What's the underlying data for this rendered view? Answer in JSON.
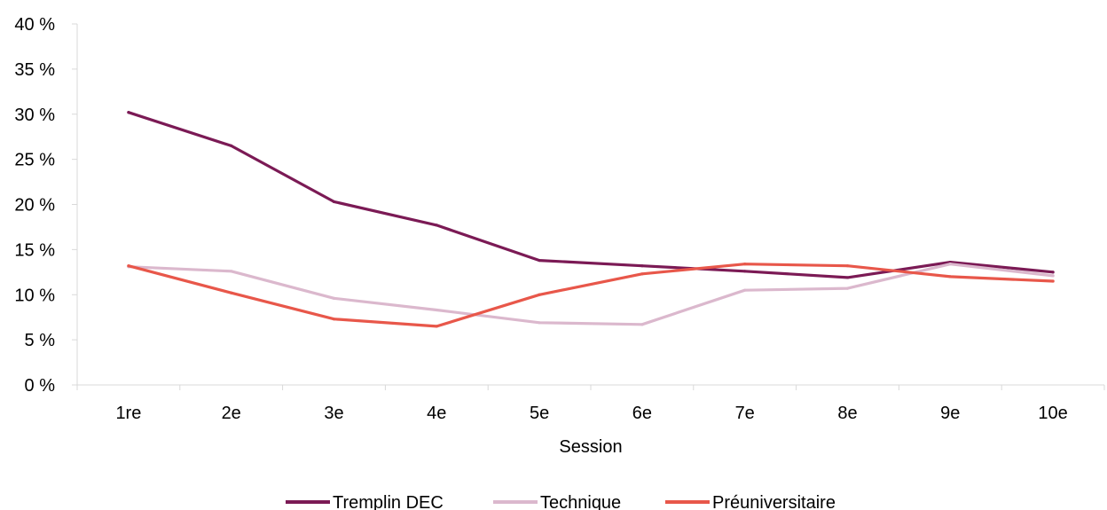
{
  "chart_data": {
    "type": "line",
    "title": "",
    "xlabel": "Session",
    "ylabel": "",
    "categories": [
      "1re",
      "2e",
      "3e",
      "4e",
      "5e",
      "6e",
      "7e",
      "8e",
      "9e",
      "10e"
    ],
    "y_ticks": [
      "0 %",
      "5 %",
      "10 %",
      "15 %",
      "20 %",
      "25 %",
      "30 %",
      "35 %",
      "40 %"
    ],
    "ylim": [
      0,
      40
    ],
    "grid": false,
    "legend_position": "bottom",
    "series": [
      {
        "name": "Tremplin DEC",
        "color": "#7b1a55",
        "values": [
          30.2,
          26.5,
          20.3,
          17.7,
          13.8,
          13.2,
          12.6,
          11.9,
          13.6,
          12.5
        ]
      },
      {
        "name": "Technique",
        "color": "#dbb8cd",
        "values": [
          13.1,
          12.6,
          9.6,
          8.3,
          6.9,
          6.7,
          10.5,
          10.7,
          13.4,
          12.1
        ]
      },
      {
        "name": "Préuniversitaire",
        "color": "#e8574a",
        "values": [
          13.2,
          10.2,
          7.3,
          6.5,
          10.0,
          12.3,
          13.4,
          13.2,
          12.0,
          11.5
        ]
      }
    ]
  }
}
